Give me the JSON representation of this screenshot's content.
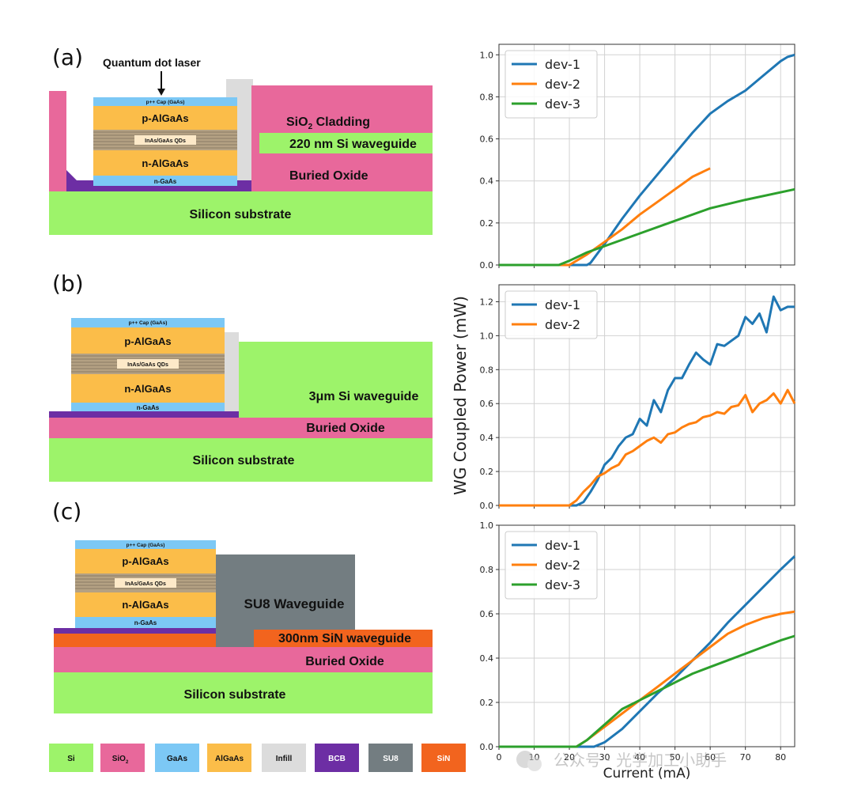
{
  "colors": {
    "si": "#9df36a",
    "sio2": "#e8689b",
    "gaas": "#7cc8f5",
    "algaas": "#fbbd49",
    "infill": "#dcdcdc",
    "bcb": "#6d2ea4",
    "su8": "#737d81",
    "sin": "#f2641e",
    "qd_stripe": "#b4a183",
    "qd_label_bg": "#fde9c8",
    "dev1": "#1f77b4",
    "dev2": "#ff7f0e",
    "dev3": "#2ca02c",
    "grid": "#d2d2d2",
    "axis": "#333333"
  },
  "panel_a": {
    "label": "(a)",
    "annotation": "Quantum dot laser",
    "layers": {
      "cap": "p++ Cap (GaAs)",
      "p": "p-AlGaAs",
      "qd": "InAs/GaAs QDs",
      "n": "n-AlGaAs",
      "ngaas": "n-GaAs",
      "cladding_pre": "SiO",
      "cladding_sub": "2",
      "cladding_post": " Cladding",
      "waveguide": "220 nm Si waveguide",
      "box": "Buried Oxide",
      "substrate": "Silicon substrate"
    }
  },
  "panel_b": {
    "label": "(b)",
    "layers": {
      "cap": "p++ Cap (GaAs)",
      "p": "p-AlGaAs",
      "qd": "InAs/GaAs QDs",
      "n": "n-AlGaAs",
      "ngaas": "n-GaAs",
      "waveguide": "3μm Si waveguide",
      "box": "Buried Oxide",
      "substrate": "Silicon substrate"
    }
  },
  "panel_c": {
    "label": "(c)",
    "layers": {
      "cap": "p++ Cap (GaAs)",
      "p": "p-AlGaAs",
      "qd": "InAs/GaAs QDs",
      "n": "n-AlGaAs",
      "ngaas": "n-GaAs",
      "su8": "SU8 Waveguide",
      "sin": "300nm SiN waveguide",
      "box": "Buried Oxide",
      "substrate": "Silicon substrate"
    }
  },
  "legend": {
    "si": "Si",
    "sio2_pre": "SiO",
    "sio2_sub": "2",
    "gaas": "GaAs",
    "algaas": "AlGaAs",
    "infill": "Infill",
    "bcb": "BCB",
    "su8": "SU8",
    "sin": "SiN"
  },
  "watermark": "公众号 · 光学加工小助手",
  "chart_data": [
    {
      "type": "line",
      "title": "",
      "xlabel": "",
      "ylabel": "",
      "xlim": [
        0,
        84
      ],
      "ylim": [
        0,
        1.05
      ],
      "xticks": [
        0,
        10,
        20,
        30,
        40,
        50,
        60,
        70,
        80
      ],
      "yticks": [
        "0.0",
        "0.2",
        "0.4",
        "0.6",
        "0.8",
        "1.0"
      ],
      "show_xtick_labels": false,
      "legend_position": "top-left",
      "series": [
        {
          "name": "dev-1",
          "color": "dev1",
          "x": [
            0,
            20,
            25,
            26,
            30,
            35,
            40,
            45,
            50,
            55,
            60,
            65,
            70,
            75,
            80,
            82,
            84
          ],
          "y": [
            0,
            0,
            0,
            0.01,
            0.1,
            0.22,
            0.33,
            0.43,
            0.53,
            0.63,
            0.72,
            0.78,
            0.83,
            0.9,
            0.97,
            0.99,
            1.0
          ]
        },
        {
          "name": "dev-2",
          "color": "dev2",
          "x": [
            0,
            20,
            22,
            25,
            30,
            35,
            40,
            45,
            50,
            55,
            60
          ],
          "y": [
            0,
            0,
            0.02,
            0.05,
            0.11,
            0.17,
            0.24,
            0.3,
            0.36,
            0.42,
            0.46
          ]
        },
        {
          "name": "dev-3",
          "color": "dev3",
          "x": [
            0,
            17,
            20,
            25,
            30,
            40,
            50,
            60,
            70,
            84
          ],
          "y": [
            0,
            0,
            0.02,
            0.06,
            0.09,
            0.15,
            0.21,
            0.27,
            0.31,
            0.36
          ]
        }
      ]
    },
    {
      "type": "line",
      "title": "",
      "xlabel": "",
      "ylabel": "WG Coupled Power (mW)",
      "xlim": [
        0,
        84
      ],
      "ylim": [
        0,
        1.3
      ],
      "xticks": [
        0,
        10,
        20,
        30,
        40,
        50,
        60,
        70,
        80
      ],
      "yticks": [
        "0.0",
        "0.2",
        "0.4",
        "0.6",
        "0.8",
        "1.0",
        "1.2"
      ],
      "show_xtick_labels": false,
      "legend_position": "top-left",
      "series": [
        {
          "name": "dev-1",
          "color": "dev1",
          "x": [
            0,
            22,
            24,
            26,
            28,
            30,
            32,
            34,
            36,
            38,
            40,
            42,
            44,
            46,
            48,
            50,
            52,
            54,
            56,
            58,
            60,
            62,
            64,
            66,
            68,
            70,
            72,
            74,
            76,
            78,
            80,
            82,
            84
          ],
          "y": [
            0,
            0,
            0.02,
            0.08,
            0.15,
            0.24,
            0.28,
            0.35,
            0.4,
            0.42,
            0.51,
            0.47,
            0.62,
            0.55,
            0.68,
            0.75,
            0.75,
            0.83,
            0.9,
            0.86,
            0.83,
            0.95,
            0.94,
            0.97,
            1.0,
            1.11,
            1.07,
            1.13,
            1.02,
            1.23,
            1.15,
            1.17,
            1.17
          ]
        },
        {
          "name": "dev-2",
          "color": "dev2",
          "x": [
            0,
            20,
            22,
            24,
            26,
            28,
            30,
            32,
            34,
            36,
            38,
            40,
            42,
            44,
            46,
            48,
            50,
            52,
            54,
            56,
            58,
            60,
            62,
            64,
            66,
            68,
            70,
            72,
            74,
            76,
            78,
            80,
            82,
            84
          ],
          "y": [
            0,
            0,
            0.03,
            0.08,
            0.12,
            0.17,
            0.19,
            0.22,
            0.24,
            0.3,
            0.32,
            0.35,
            0.38,
            0.4,
            0.37,
            0.42,
            0.43,
            0.46,
            0.48,
            0.49,
            0.52,
            0.53,
            0.55,
            0.54,
            0.58,
            0.59,
            0.65,
            0.55,
            0.6,
            0.62,
            0.66,
            0.6,
            0.68,
            0.6
          ]
        }
      ]
    },
    {
      "type": "line",
      "title": "",
      "xlabel": "Current (mA)",
      "ylabel": "",
      "xlim": [
        0,
        84
      ],
      "ylim": [
        0,
        1.0
      ],
      "xticks": [
        0,
        10,
        20,
        30,
        40,
        50,
        60,
        70,
        80
      ],
      "yticks": [
        "0.0",
        "0.2",
        "0.4",
        "0.6",
        "0.8",
        "1.0"
      ],
      "show_xtick_labels": true,
      "legend_position": "top-left",
      "series": [
        {
          "name": "dev-1",
          "color": "dev1",
          "x": [
            0,
            27,
            30,
            35,
            40,
            45,
            50,
            55,
            60,
            65,
            70,
            75,
            80,
            84
          ],
          "y": [
            0,
            0,
            0.02,
            0.08,
            0.16,
            0.24,
            0.31,
            0.39,
            0.47,
            0.56,
            0.64,
            0.72,
            0.8,
            0.86
          ]
        },
        {
          "name": "dev-2",
          "color": "dev2",
          "x": [
            0,
            22,
            25,
            30,
            35,
            40,
            45,
            50,
            55,
            60,
            65,
            70,
            75,
            80,
            84
          ],
          "y": [
            0,
            0,
            0.03,
            0.09,
            0.15,
            0.21,
            0.27,
            0.33,
            0.39,
            0.45,
            0.51,
            0.55,
            0.58,
            0.6,
            0.61
          ]
        },
        {
          "name": "dev-3",
          "color": "dev3",
          "x": [
            0,
            22,
            25,
            30,
            35,
            40,
            45,
            50,
            55,
            60,
            65,
            70,
            75,
            80,
            84
          ],
          "y": [
            0,
            0,
            0.03,
            0.1,
            0.17,
            0.21,
            0.25,
            0.29,
            0.33,
            0.36,
            0.39,
            0.42,
            0.45,
            0.48,
            0.5
          ]
        }
      ]
    }
  ]
}
